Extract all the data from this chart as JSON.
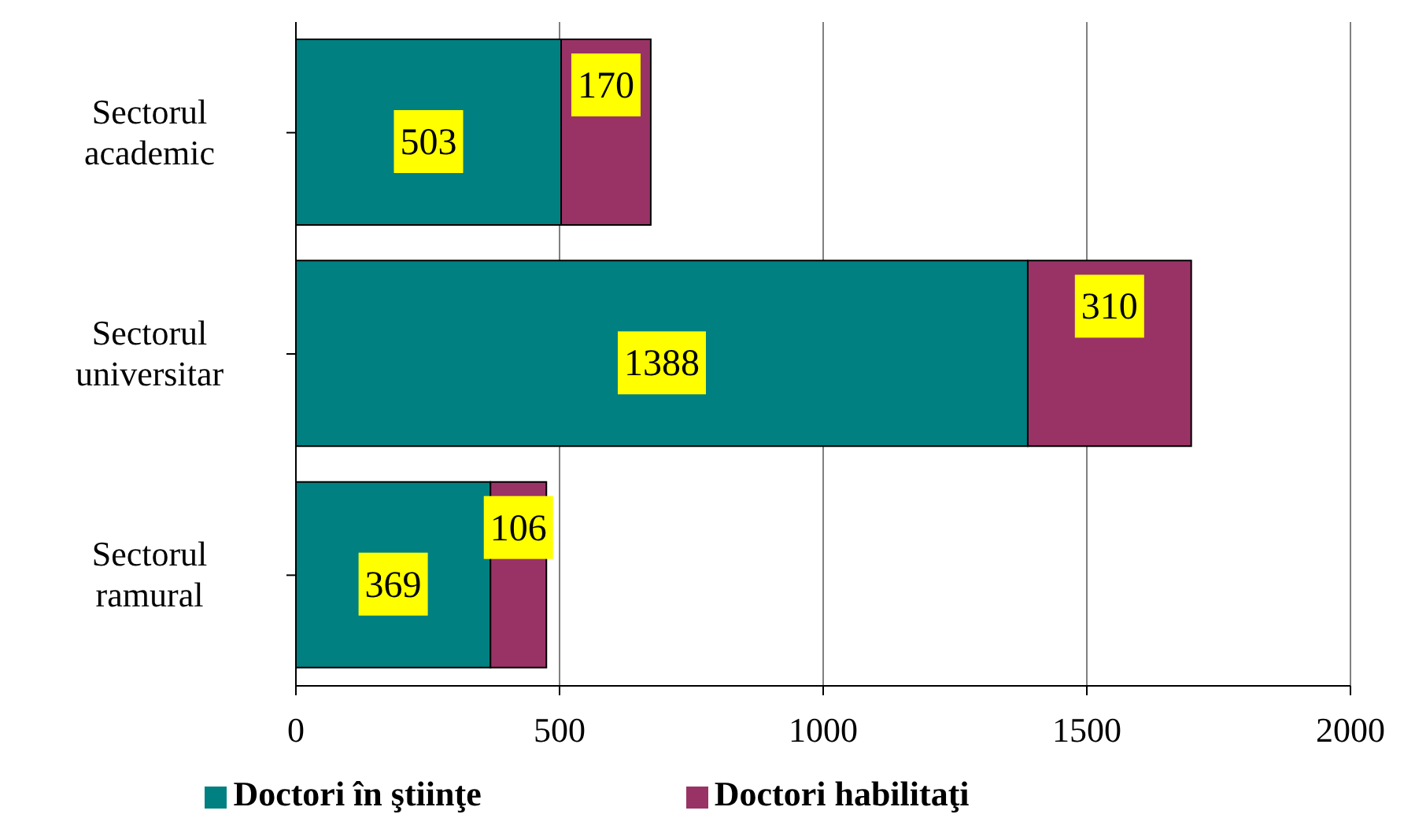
{
  "chart_data": {
    "type": "bar",
    "orientation": "horizontal",
    "stacked": true,
    "categories": [
      "Sectorul academic",
      "Sectorul universitar",
      "Sectorul ramural"
    ],
    "series": [
      {
        "name": "Doctori în ştiinţe",
        "color": "#008080",
        "values": [
          503,
          1388,
          369
        ]
      },
      {
        "name": "Doctori habilitaţi",
        "color": "#993366",
        "values": [
          170,
          310,
          106
        ]
      }
    ],
    "xlim": [
      0,
      2000
    ],
    "xticks": [
      0,
      500,
      1000,
      1500,
      2000
    ],
    "grid": "x",
    "legend": "bottom",
    "data_labels": true
  }
}
